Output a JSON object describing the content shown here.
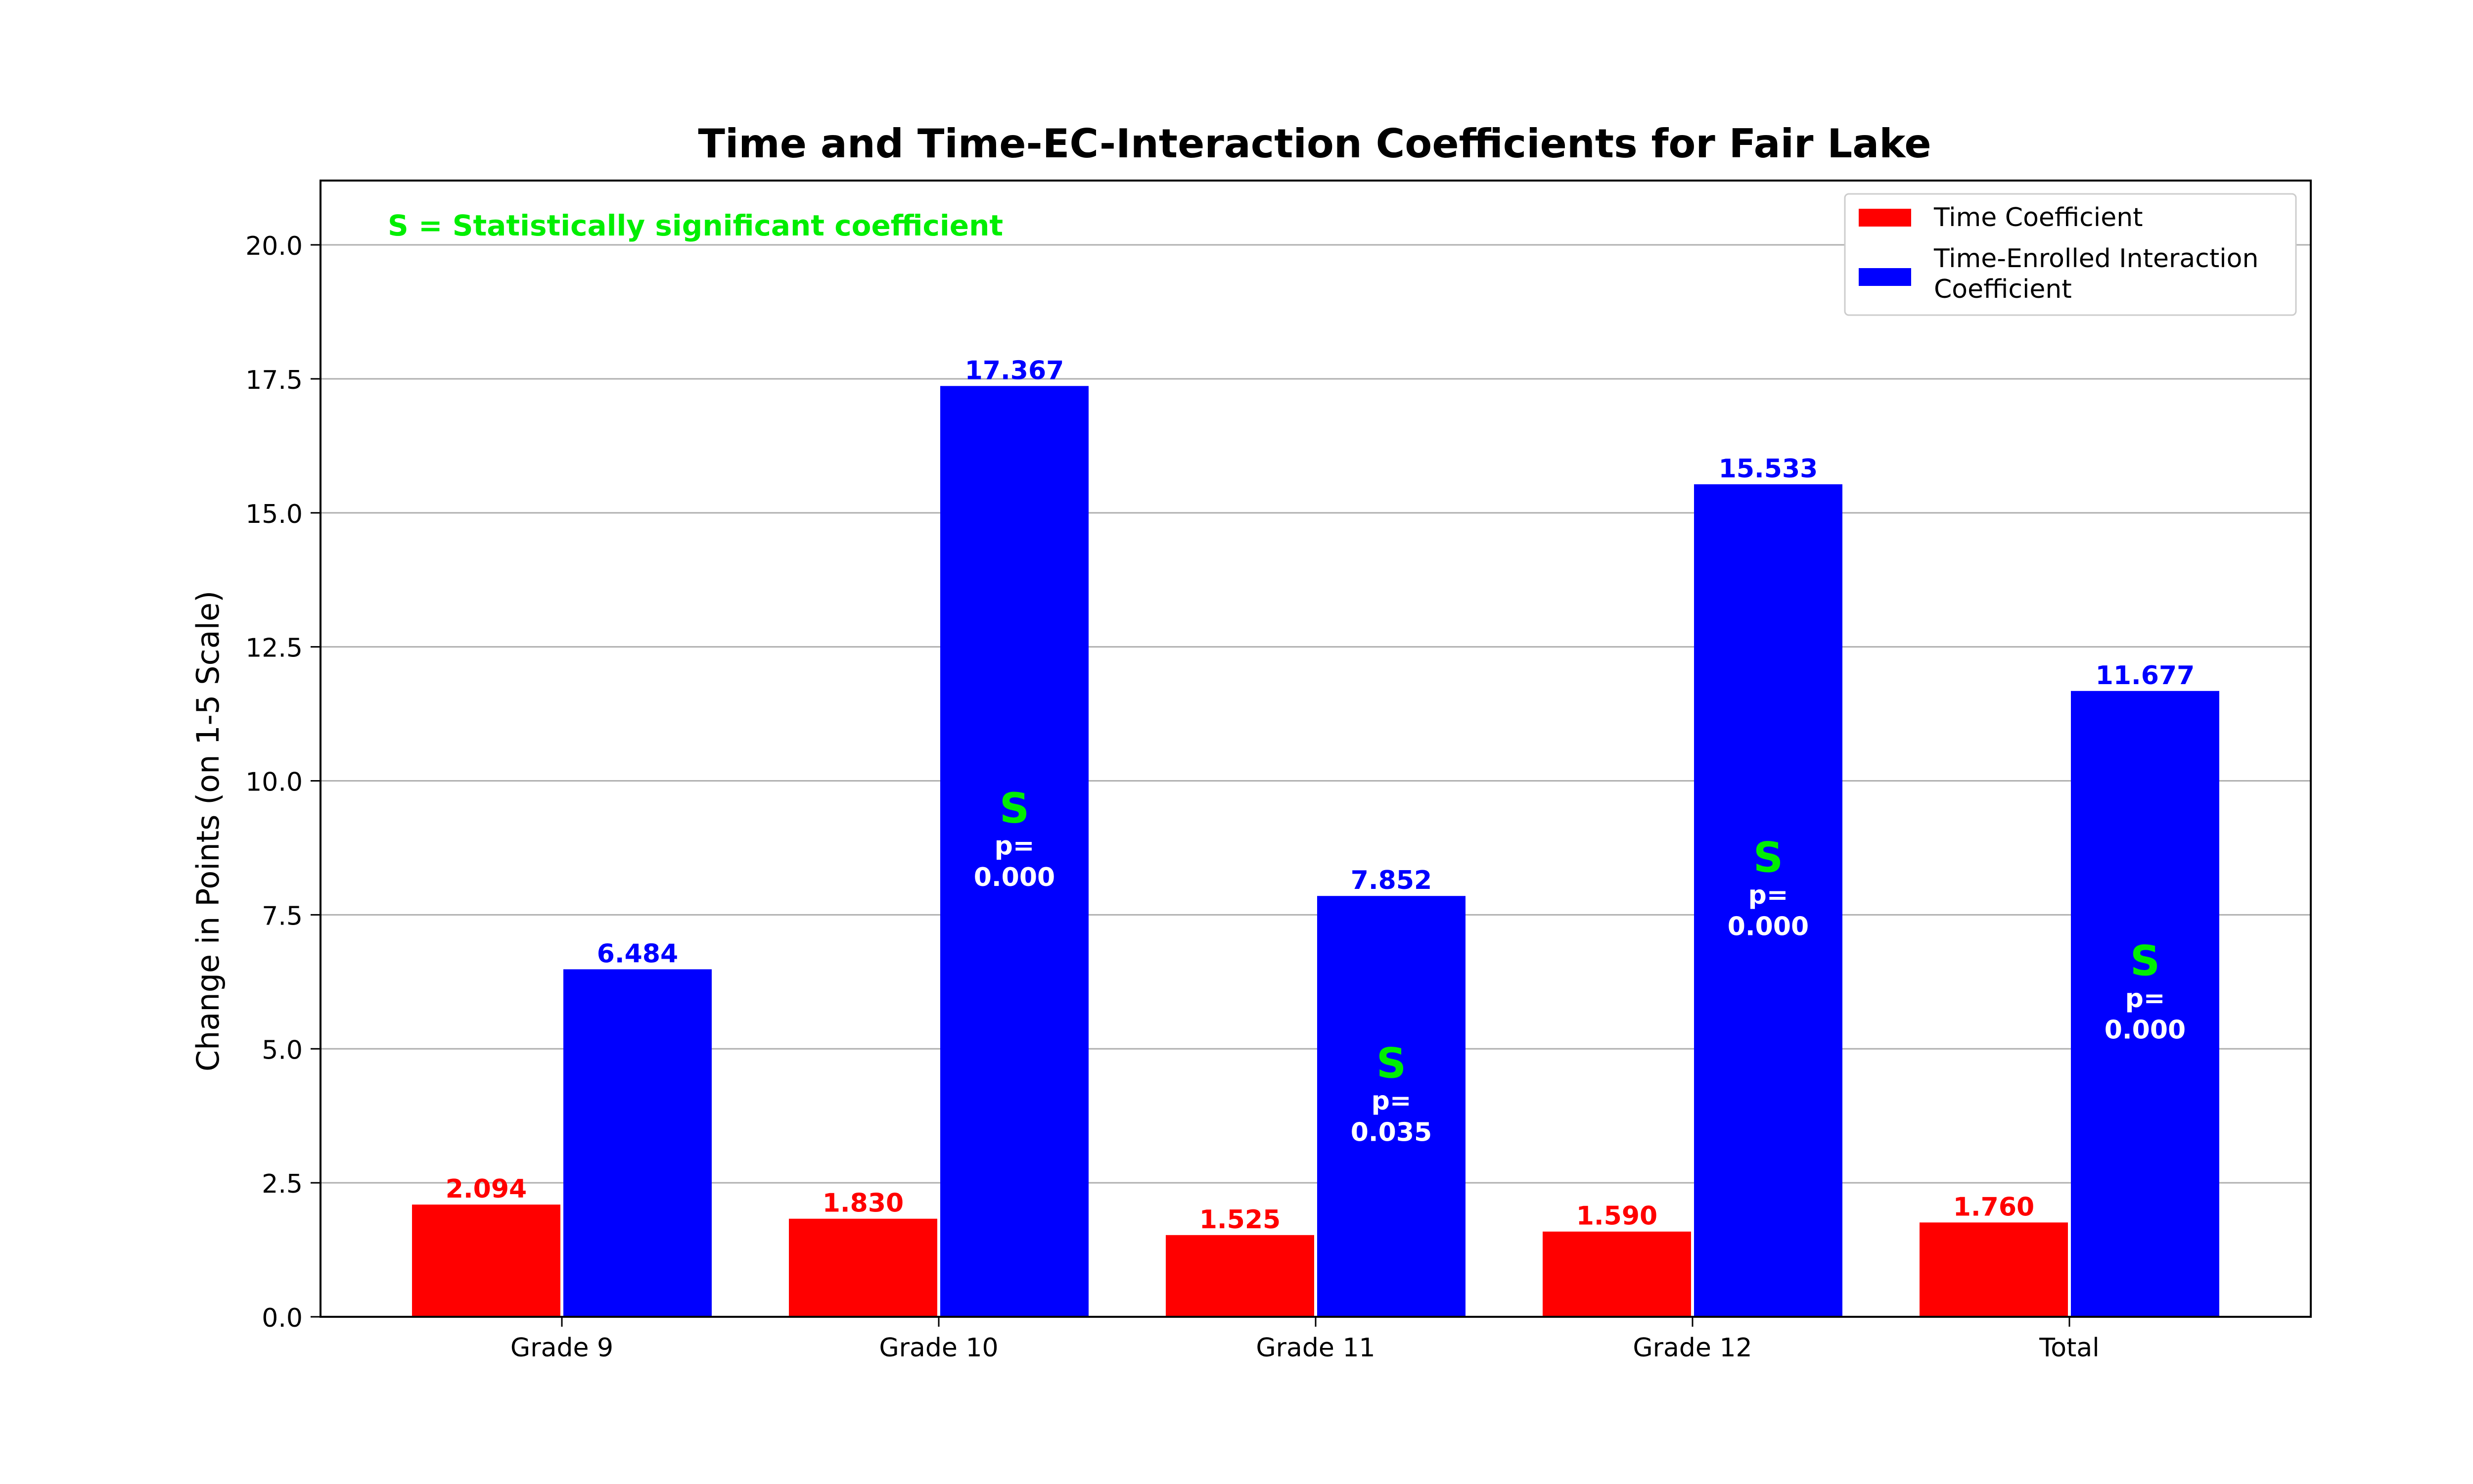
{
  "chart_data": {
    "type": "bar",
    "title": "Time and Time-EC-Interaction Coefficients for Fair Lake",
    "xlabel": "",
    "ylabel": "Change in Points (on 1-5 Scale)",
    "ylim": [
      0,
      21.2
    ],
    "yticks": [
      "0.0",
      "2.5",
      "5.0",
      "7.5",
      "10.0",
      "12.5",
      "15.0",
      "17.5",
      "20.0"
    ],
    "ytick_values": [
      0,
      2.5,
      5,
      7.5,
      10,
      12.5,
      15,
      17.5,
      20
    ],
    "grid": "horizontal",
    "legend_position": "top-right",
    "categories": [
      "Grade 9",
      "Grade 10",
      "Grade 11",
      "Grade 12",
      "Total"
    ],
    "series": [
      {
        "name": "Time Coefficient",
        "color": "#ff0000",
        "values": [
          2.094,
          1.83,
          1.525,
          1.59,
          1.76
        ],
        "labels": [
          "2.094",
          "1.830",
          "1.525",
          "1.590",
          "1.760"
        ]
      },
      {
        "name": "Time-Enrolled Interaction Coefficient",
        "legend_lines": [
          "Time-Enrolled Interaction",
          "Coefficient"
        ],
        "color": "#0000ff",
        "values": [
          6.484,
          17.367,
          7.852,
          15.533,
          11.677
        ],
        "labels": [
          "6.484",
          "17.367",
          "7.852",
          "15.533",
          "11.677"
        ]
      }
    ],
    "significance": {
      "note": "S = Statistically significant coefficient",
      "note_color": "#00ee00",
      "marker": "S",
      "p_prefix": "p=",
      "items": [
        {
          "category_index": 1,
          "series_index": 1,
          "p": "0.000"
        },
        {
          "category_index": 2,
          "series_index": 1,
          "p": "0.035"
        },
        {
          "category_index": 3,
          "series_index": 1,
          "p": "0.000"
        },
        {
          "category_index": 4,
          "series_index": 1,
          "p": "0.000"
        }
      ]
    }
  }
}
